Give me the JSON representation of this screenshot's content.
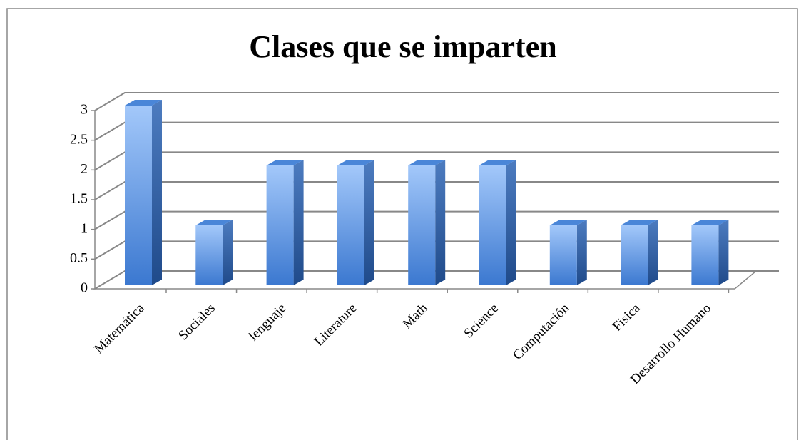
{
  "chart_data": {
    "type": "bar",
    "title": "Clases que se imparten",
    "categories": [
      "Matemática",
      "Sociales",
      "lenguaje",
      "Literature",
      "Math",
      "Science",
      "Computación",
      "Fisica",
      "Desarrollo Humano"
    ],
    "values": [
      3,
      1,
      2,
      2,
      2,
      2,
      1,
      1,
      1
    ],
    "color": "#4a86d8",
    "ylim": [
      0,
      3
    ],
    "yticks": [
      0,
      0.5,
      1,
      1.5,
      2,
      2.5,
      3
    ],
    "grid": true
  }
}
